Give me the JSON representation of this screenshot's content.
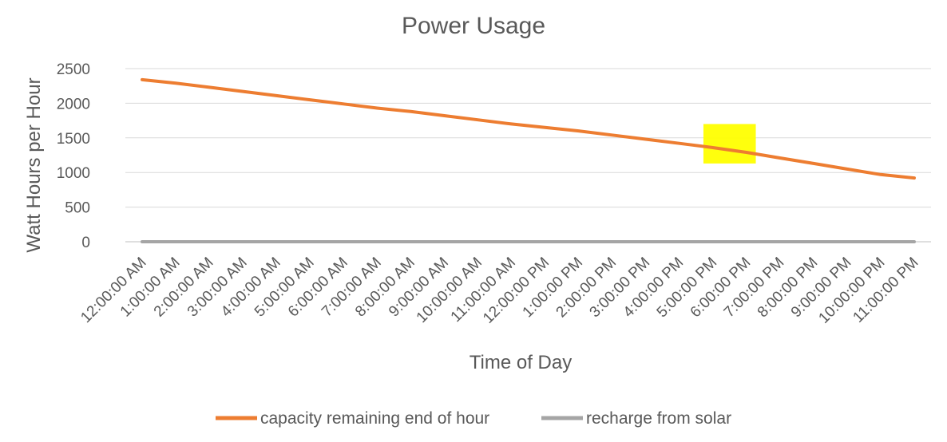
{
  "chart_data": {
    "type": "line",
    "title": "Power Usage",
    "xlabel": "Time of Day",
    "ylabel": "Watt Hours per Hour",
    "ylim": [
      0,
      2500
    ],
    "yticks": [
      "0",
      "500",
      "1000",
      "1500",
      "2000",
      "2500"
    ],
    "grid": true,
    "legend_position": "bottom",
    "categories": [
      "12:00:00 AM",
      "1:00:00 AM",
      "2:00:00 AM",
      "3:00:00 AM",
      "4:00:00 AM",
      "5:00:00 AM",
      "6:00:00 AM",
      "7:00:00 AM",
      "8:00:00 AM",
      "9:00:00 AM",
      "10:00:00 AM",
      "11:00:00 AM",
      "12:00:00 PM",
      "1:00:00 PM",
      "2:00:00 PM",
      "3:00:00 PM",
      "4:00:00 PM",
      "5:00:00 PM",
      "6:00:00 PM",
      "7:00:00 PM",
      "8:00:00 PM",
      "9:00:00 PM",
      "10:00:00 PM",
      "11:00:00 PM"
    ],
    "series": [
      {
        "name": "capacity remaining end of hour",
        "color": "#ED7D31",
        "values": [
          2340,
          2290,
          2230,
          2170,
          2110,
          2050,
          1990,
          1930,
          1880,
          1820,
          1760,
          1700,
          1650,
          1600,
          1540,
          1480,
          1420,
          1360,
          1290,
          1210,
          1130,
          1050,
          970,
          920
        ]
      },
      {
        "name": "recharge from solar",
        "color": "#A5A5A5",
        "values": [
          0,
          0,
          0,
          0,
          0,
          0,
          0,
          0,
          0,
          0,
          0,
          0,
          0,
          0,
          0,
          0,
          0,
          0,
          0,
          0,
          0,
          0,
          0,
          0
        ]
      }
    ],
    "highlight": {
      "color": "#FFFF00",
      "x_from": "5:00:00 PM",
      "x_to": "6:00:00 PM",
      "y_range": [
        1130,
        1700
      ]
    }
  }
}
